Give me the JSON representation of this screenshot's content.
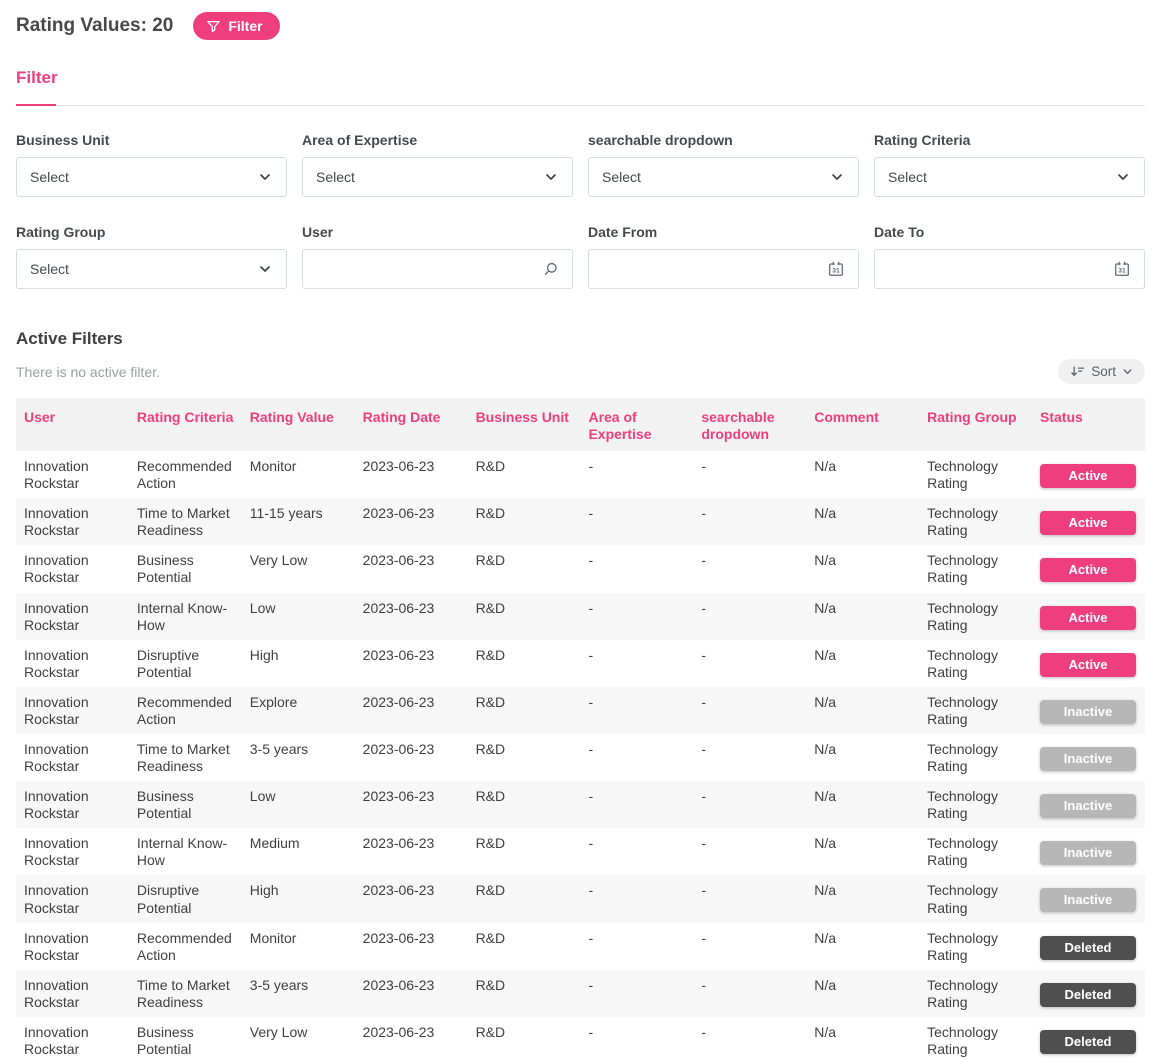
{
  "accent_color": "#ee3e7d",
  "header": {
    "title": "Rating Values: 20",
    "filter_button_label": "Filter"
  },
  "filter_panel": {
    "title": "Filter",
    "fields": [
      {
        "label": "Business Unit",
        "type": "select",
        "value": "Select"
      },
      {
        "label": "Area of Expertise",
        "type": "select",
        "value": "Select"
      },
      {
        "label": "searchable dropdown",
        "type": "select",
        "value": "Select"
      },
      {
        "label": "Rating Criteria",
        "type": "select",
        "value": "Select"
      },
      {
        "label": "Rating Group",
        "type": "select",
        "value": "Select"
      },
      {
        "label": "User",
        "type": "search",
        "value": ""
      },
      {
        "label": "Date From",
        "type": "date",
        "value": ""
      },
      {
        "label": "Date To",
        "type": "date",
        "value": ""
      }
    ]
  },
  "active_filters": {
    "title": "Active Filters",
    "empty_message": "There is no active filter."
  },
  "sort_button_label": "Sort",
  "icons": {
    "funnel": "filter-funnel",
    "chevron": "chevron-down",
    "search": "magnifier",
    "calendar": "calendar-31",
    "sort": "sort-descending"
  },
  "table": {
    "columns": [
      "User",
      "Rating Criteria",
      "Rating Value",
      "Rating Date",
      "Business Unit",
      "Area of Expertise",
      "searchable dropdown",
      "Comment",
      "Rating Group",
      "Status"
    ],
    "rows": [
      {
        "user": "Innovation Rockstar",
        "criteria": "Recommended Action",
        "value": "Monitor",
        "date": "2023-06-23",
        "business_unit": "R&D",
        "area": "-",
        "searchable": "-",
        "comment": "N/a",
        "group": "Technology Rating",
        "status": "Active"
      },
      {
        "user": "Innovation Rockstar",
        "criteria": "Time to Market Readiness",
        "value": "11-15 years",
        "date": "2023-06-23",
        "business_unit": "R&D",
        "area": "-",
        "searchable": "-",
        "comment": "N/a",
        "group": "Technology Rating",
        "status": "Active"
      },
      {
        "user": "Innovation Rockstar",
        "criteria": "Business Potential",
        "value": "Very Low",
        "date": "2023-06-23",
        "business_unit": "R&D",
        "area": "-",
        "searchable": "-",
        "comment": "N/a",
        "group": "Technology Rating",
        "status": "Active"
      },
      {
        "user": "Innovation Rockstar",
        "criteria": "Internal Know-How",
        "value": "Low",
        "date": "2023-06-23",
        "business_unit": "R&D",
        "area": "-",
        "searchable": "-",
        "comment": "N/a",
        "group": "Technology Rating",
        "status": "Active"
      },
      {
        "user": "Innovation Rockstar",
        "criteria": "Disruptive Potential",
        "value": "High",
        "date": "2023-06-23",
        "business_unit": "R&D",
        "area": "-",
        "searchable": "-",
        "comment": "N/a",
        "group": "Technology Rating",
        "status": "Active"
      },
      {
        "user": "Innovation Rockstar",
        "criteria": "Recommended Action",
        "value": "Explore",
        "date": "2023-06-23",
        "business_unit": "R&D",
        "area": "-",
        "searchable": "-",
        "comment": "N/a",
        "group": "Technology Rating",
        "status": "Inactive"
      },
      {
        "user": "Innovation Rockstar",
        "criteria": "Time to Market Readiness",
        "value": "3-5 years",
        "date": "2023-06-23",
        "business_unit": "R&D",
        "area": "-",
        "searchable": "-",
        "comment": "N/a",
        "group": "Technology Rating",
        "status": "Inactive"
      },
      {
        "user": "Innovation Rockstar",
        "criteria": "Business Potential",
        "value": "Low",
        "date": "2023-06-23",
        "business_unit": "R&D",
        "area": "-",
        "searchable": "-",
        "comment": "N/a",
        "group": "Technology Rating",
        "status": "Inactive"
      },
      {
        "user": "Innovation Rockstar",
        "criteria": "Internal Know-How",
        "value": "Medium",
        "date": "2023-06-23",
        "business_unit": "R&D",
        "area": "-",
        "searchable": "-",
        "comment": "N/a",
        "group": "Technology Rating",
        "status": "Inactive"
      },
      {
        "user": "Innovation Rockstar",
        "criteria": "Disruptive Potential",
        "value": "High",
        "date": "2023-06-23",
        "business_unit": "R&D",
        "area": "-",
        "searchable": "-",
        "comment": "N/a",
        "group": "Technology Rating",
        "status": "Inactive"
      },
      {
        "user": "Innovation Rockstar",
        "criteria": "Recommended Action",
        "value": "Monitor",
        "date": "2023-06-23",
        "business_unit": "R&D",
        "area": "-",
        "searchable": "-",
        "comment": "N/a",
        "group": "Technology Rating",
        "status": "Deleted"
      },
      {
        "user": "Innovation Rockstar",
        "criteria": "Time to Market Readiness",
        "value": "3-5 years",
        "date": "2023-06-23",
        "business_unit": "R&D",
        "area": "-",
        "searchable": "-",
        "comment": "N/a",
        "group": "Technology Rating",
        "status": "Deleted"
      },
      {
        "user": "Innovation Rockstar",
        "criteria": "Business Potential",
        "value": "Very Low",
        "date": "2023-06-23",
        "business_unit": "R&D",
        "area": "-",
        "searchable": "-",
        "comment": "N/a",
        "group": "Technology Rating",
        "status": "Deleted"
      }
    ]
  },
  "status_colors": {
    "Active": "#ee3e7d",
    "Inactive": "#b7b7b7",
    "Deleted": "#4f4f4f"
  }
}
